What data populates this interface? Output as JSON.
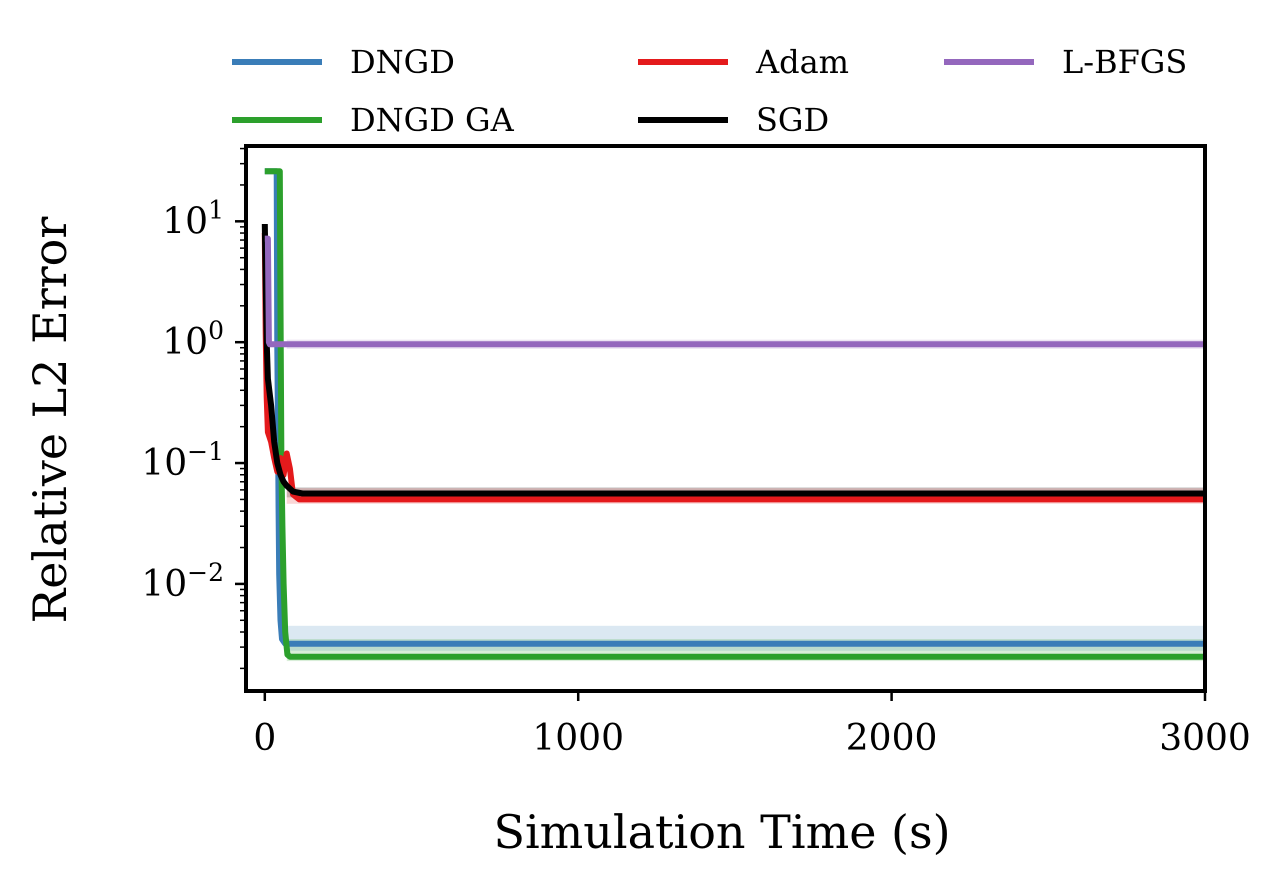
{
  "chart_data": {
    "type": "line",
    "xscale": "linear",
    "yscale": "log",
    "xlabel": "Simulation Time (s)",
    "ylabel": "Relative L2 Error",
    "xlim": [
      -60,
      3000
    ],
    "ylim": [
      0.0013,
      42
    ],
    "x_ticks": [
      {
        "value": 0,
        "label": "0"
      },
      {
        "value": 1000,
        "label": "1000"
      },
      {
        "value": 2000,
        "label": "2000"
      },
      {
        "value": 3000,
        "label": "3000"
      }
    ],
    "y_ticks": [
      {
        "value": 0.01,
        "base": "10",
        "exp": "−2"
      },
      {
        "value": 0.1,
        "base": "10",
        "exp": "−1"
      },
      {
        "value": 1,
        "base": "10",
        "exp": "0"
      },
      {
        "value": 10,
        "base": "10",
        "exp": "1"
      }
    ],
    "grid": false,
    "legend_position": "top",
    "series": [
      {
        "name": "DNGD",
        "color": "#3a7db8",
        "band": {
          "upper": 0.0045,
          "lower": 0.0028
        },
        "points": [
          [
            0,
            26
          ],
          [
            38,
            26
          ],
          [
            40,
            0.9
          ],
          [
            42,
            0.2
          ],
          [
            44,
            0.04
          ],
          [
            46,
            0.012
          ],
          [
            50,
            0.005
          ],
          [
            55,
            0.0035
          ],
          [
            65,
            0.0032
          ],
          [
            3000,
            0.0032
          ]
        ]
      },
      {
        "name": "DNGD GA",
        "color": "#2ca02c",
        "band": {
          "upper": 0.0035,
          "lower": 0.0023
        },
        "points": [
          [
            0,
            26
          ],
          [
            48,
            26
          ],
          [
            50,
            2
          ],
          [
            53,
            0.1
          ],
          [
            56,
            0.03
          ],
          [
            60,
            0.01
          ],
          [
            65,
            0.004
          ],
          [
            72,
            0.0026
          ],
          [
            80,
            0.0025
          ],
          [
            3000,
            0.0025
          ]
        ]
      },
      {
        "name": "Adam",
        "color": "#e41a1c",
        "band": {
          "upper": 0.062,
          "lower": 0.046
        },
        "points": [
          [
            0,
            8
          ],
          [
            3,
            1.2
          ],
          [
            6,
            0.35
          ],
          [
            10,
            0.18
          ],
          [
            20,
            0.15
          ],
          [
            30,
            0.11
          ],
          [
            40,
            0.085
          ],
          [
            50,
            0.11
          ],
          [
            60,
            0.08
          ],
          [
            70,
            0.12
          ],
          [
            80,
            0.09
          ],
          [
            90,
            0.055
          ],
          [
            110,
            0.05
          ],
          [
            3000,
            0.05
          ]
        ]
      },
      {
        "name": "SGD",
        "color": "#000000",
        "band": {
          "upper": 0.063,
          "lower": 0.052
        },
        "points": [
          [
            0,
            9.5
          ],
          [
            3,
            3
          ],
          [
            6,
            1
          ],
          [
            10,
            0.5
          ],
          [
            20,
            0.3
          ],
          [
            30,
            0.15
          ],
          [
            40,
            0.1
          ],
          [
            50,
            0.08
          ],
          [
            60,
            0.07
          ],
          [
            70,
            0.065
          ],
          [
            90,
            0.058
          ],
          [
            120,
            0.056
          ],
          [
            3000,
            0.056
          ]
        ]
      },
      {
        "name": "L-BFGS",
        "color": "#9467bd",
        "band": {
          "upper": 1.05,
          "lower": 0.88
        },
        "points": [
          [
            0,
            7.2
          ],
          [
            10,
            7.2
          ],
          [
            13,
            1.0
          ],
          [
            16,
            0.96
          ],
          [
            3000,
            0.96
          ]
        ]
      }
    ]
  }
}
